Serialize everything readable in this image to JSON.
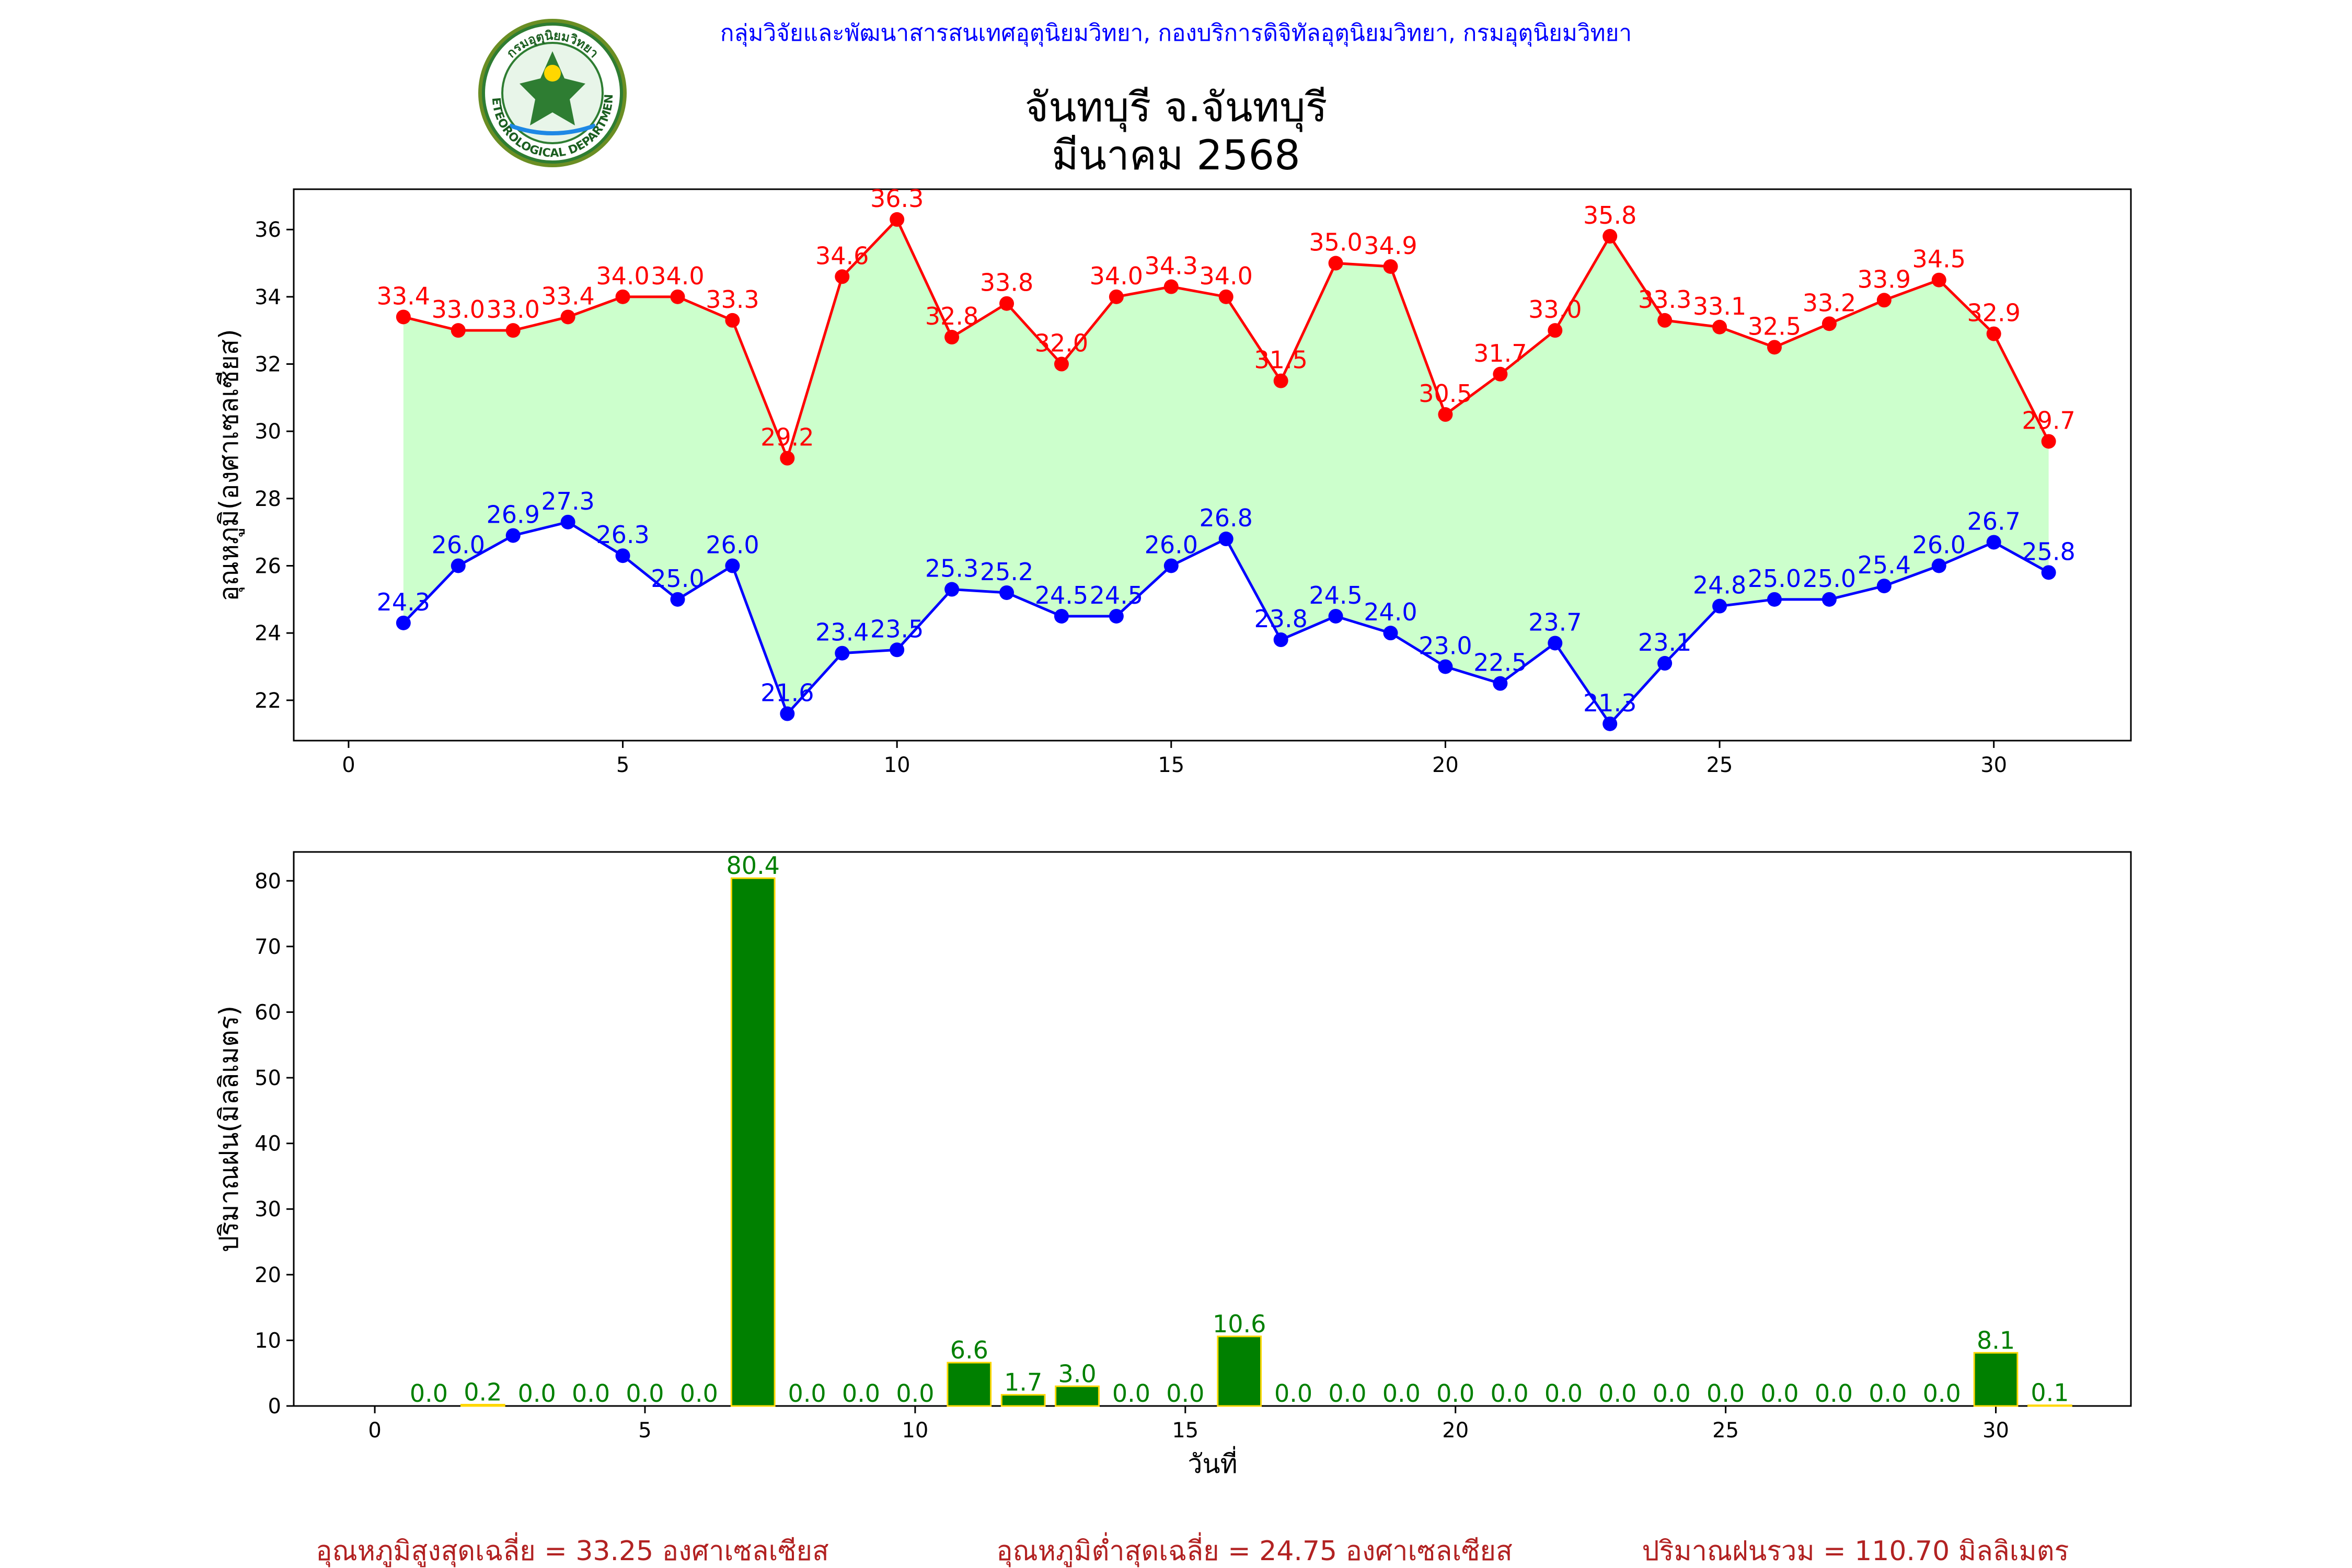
{
  "header": {
    "org_line": "กลุ่มวิจัยและพัฒนาสารสนเทศอุตุนิยมวิทยา, กองบริการดิจิทัลอุตุนิยมวิทยา, กรมอุตุนิยมวิทยา",
    "title_line1": "จันทบุรี จ.จันทบุรี",
    "title_line2": "มีนาคม 2568",
    "logo_text": "METEOROLOGICAL DEPARTMENT",
    "logo_text_top": "กรมอุตุนิยมวิทยา"
  },
  "colors": {
    "max": "#ff0000",
    "min": "#0000ff",
    "fill": "#ccffcc",
    "rain_bar": "#008000",
    "rain_edge": "#ffd700",
    "rain_label": "#008000",
    "header_blue": "#0000ff",
    "footer": "#b22222"
  },
  "chart_data": [
    {
      "type": "line",
      "ylabel": "อุณหภูมิ(องศาเซลเซียส)",
      "xlim": [
        -1,
        32.5
      ],
      "ylim": [
        20.8,
        37.2
      ],
      "xticks": [
        0,
        5,
        10,
        15,
        20,
        25,
        30
      ],
      "yticks": [
        22,
        24,
        26,
        28,
        30,
        32,
        34,
        36
      ],
      "x": [
        1,
        2,
        3,
        4,
        5,
        6,
        7,
        8,
        9,
        10,
        11,
        12,
        13,
        14,
        15,
        16,
        17,
        18,
        19,
        20,
        21,
        22,
        23,
        24,
        25,
        26,
        27,
        28,
        29,
        30,
        31
      ],
      "series": [
        {
          "key": "max",
          "values": [
            33.4,
            33.0,
            33.0,
            33.4,
            34.0,
            34.0,
            33.3,
            29.2,
            34.6,
            36.3,
            32.8,
            33.8,
            32.0,
            34.0,
            34.3,
            34.0,
            31.5,
            35.0,
            34.9,
            30.5,
            31.7,
            33.0,
            35.8,
            33.3,
            33.1,
            32.5,
            33.2,
            33.9,
            34.5,
            32.9,
            29.7
          ]
        },
        {
          "key": "min",
          "values": [
            24.3,
            26.0,
            26.9,
            27.3,
            26.3,
            25.0,
            26.0,
            21.6,
            23.4,
            23.5,
            25.3,
            25.2,
            24.5,
            24.5,
            26.0,
            26.8,
            23.8,
            24.5,
            24.0,
            23.0,
            22.5,
            23.7,
            21.3,
            23.1,
            24.8,
            25.0,
            25.0,
            25.4,
            26.0,
            26.7,
            25.8
          ]
        }
      ]
    },
    {
      "type": "bar",
      "ylabel": "ปริมาณฝน(มิลลิเมตร)",
      "xlabel": "วันที่",
      "xlim": [
        -1.5,
        32.5
      ],
      "ylim": [
        0,
        84.4
      ],
      "xticks": [
        0,
        5,
        10,
        15,
        20,
        25,
        30
      ],
      "yticks": [
        0,
        10,
        20,
        30,
        40,
        50,
        60,
        70,
        80
      ],
      "x": [
        1,
        2,
        3,
        4,
        5,
        6,
        7,
        8,
        9,
        10,
        11,
        12,
        13,
        14,
        15,
        16,
        17,
        18,
        19,
        20,
        21,
        22,
        23,
        24,
        25,
        26,
        27,
        28,
        29,
        30,
        31
      ],
      "values": [
        0.0,
        0.2,
        0.0,
        0.0,
        0.0,
        0.0,
        80.4,
        0.0,
        0.0,
        0.0,
        6.6,
        1.7,
        3.0,
        0.0,
        0.0,
        10.6,
        0.0,
        0.0,
        0.0,
        0.0,
        0.0,
        0.0,
        0.0,
        0.0,
        0.0,
        0.0,
        0.0,
        0.0,
        0.0,
        8.1,
        0.1
      ]
    }
  ],
  "footer": {
    "avg_max_text": "อุณหภูมิสูงสุดเฉลี่ย = 33.25 องศาเซลเซียส",
    "avg_min_text": "อุณหภูมิต่ำสุดเฉลี่ย = 24.75 องศาเซลเซียส",
    "total_rain_text": "ปริมาณฝนรวม = 110.70 มิลลิเมตร"
  }
}
